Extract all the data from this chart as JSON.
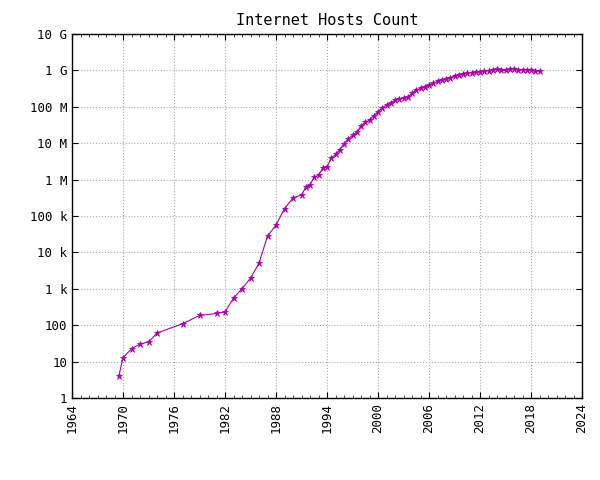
{
  "title": "Internet Hosts Count",
  "xlim": [
    1964,
    2024
  ],
  "ylim_log": [
    1,
    10000000000.0
  ],
  "color": "#AA00AA",
  "data": [
    [
      1969.5,
      4
    ],
    [
      1970.0,
      13
    ],
    [
      1971.0,
      23
    ],
    [
      1972.0,
      31
    ],
    [
      1973.0,
      35
    ],
    [
      1974.0,
      62
    ],
    [
      1977.0,
      111
    ],
    [
      1979.0,
      188
    ],
    [
      1981.0,
      213
    ],
    [
      1982.0,
      235
    ],
    [
      1983.0,
      562
    ],
    [
      1984.0,
      1024
    ],
    [
      1985.0,
      1961
    ],
    [
      1986.0,
      5089
    ],
    [
      1987.0,
      28174
    ],
    [
      1988.0,
      56000
    ],
    [
      1989.0,
      159000
    ],
    [
      1990.0,
      313000
    ],
    [
      1991.0,
      376000
    ],
    [
      1991.5,
      617000
    ],
    [
      1992.0,
      727000
    ],
    [
      1992.5,
      1136000
    ],
    [
      1993.0,
      1313000
    ],
    [
      1993.5,
      2056000
    ],
    [
      1994.0,
      2217000
    ],
    [
      1994.5,
      3864000
    ],
    [
      1995.0,
      4852000
    ],
    [
      1995.5,
      6642000
    ],
    [
      1996.0,
      9472000
    ],
    [
      1996.5,
      12881000
    ],
    [
      1997.0,
      16146000
    ],
    [
      1997.5,
      19540000
    ],
    [
      1998.0,
      29670000
    ],
    [
      1998.5,
      36739000
    ],
    [
      1999.0,
      43230000
    ],
    [
      1999.5,
      56218000
    ],
    [
      2000.0,
      72398092
    ],
    [
      2000.5,
      93047785
    ],
    [
      2001.0,
      109574429
    ],
    [
      2001.5,
      125888197
    ],
    [
      2002.0,
      147344723
    ],
    [
      2002.5,
      162128493
    ],
    [
      2003.0,
      171638297
    ],
    [
      2003.5,
      179138677
    ],
    [
      2004.0,
      233101481
    ],
    [
      2004.5,
      285139107
    ],
    [
      2005.0,
      317646084
    ],
    [
      2005.5,
      353284187
    ],
    [
      2006.0,
      394991609
    ],
    [
      2006.5,
      433193199
    ],
    [
      2007.0,
      489774269
    ],
    [
      2007.5,
      541677360
    ],
    [
      2008.0,
      570937778
    ],
    [
      2008.5,
      625226694
    ],
    [
      2009.0,
      681064561
    ],
    [
      2009.5,
      732740444
    ],
    [
      2010.0,
      768913036
    ],
    [
      2010.5,
      818374125
    ],
    [
      2011.0,
      849869781
    ],
    [
      2011.5,
      888239420
    ],
    [
      2012.0,
      908799270
    ],
    [
      2012.5,
      920160258
    ],
    [
      2013.0,
      963979938
    ],
    [
      2013.5,
      1010966653
    ],
    [
      2014.0,
      1042508593
    ],
    [
      2014.5,
      1004665200
    ],
    [
      2015.0,
      981019498
    ],
    [
      2015.5,
      1066608456
    ],
    [
      2016.0,
      1089445971
    ],
    [
      2016.5,
      1022119102
    ],
    [
      2017.0,
      1004665200
    ],
    [
      2017.5,
      1021440002
    ],
    [
      2018.0,
      1020479843
    ],
    [
      2018.5,
      929656252
    ],
    [
      2019.0,
      929656252
    ]
  ],
  "ytick_labels": [
    "1",
    "10",
    "100",
    "1 k",
    "10 k",
    "100 k",
    "1 M",
    "10 M",
    "100 M",
    "1 G",
    "10 G"
  ],
  "ytick_values": [
    1,
    10,
    100,
    1000,
    10000,
    100000,
    1000000,
    10000000,
    100000000,
    1000000000,
    10000000000
  ],
  "xtick_values": [
    1964,
    1970,
    1976,
    1982,
    1988,
    1994,
    2000,
    2006,
    2012,
    2018,
    2024
  ],
  "title_fontsize": 11,
  "tick_fontsize": 9,
  "background_color": "#ffffff",
  "grid_color": "#aaaaaa"
}
